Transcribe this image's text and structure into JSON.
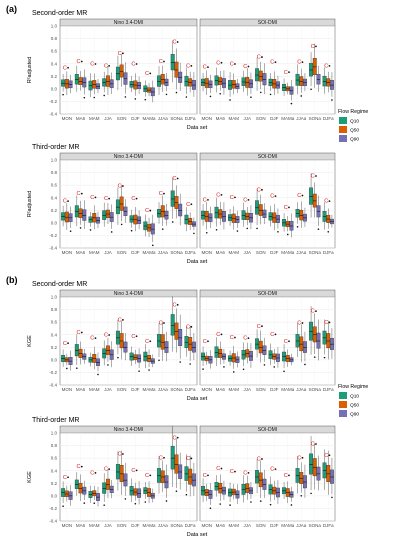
{
  "section_labels": [
    "(a)",
    "(b)"
  ],
  "legend": {
    "title": "Flow Regime",
    "items": [
      {
        "label": "Q10",
        "color": "#1b9e77"
      },
      {
        "label": "Q50",
        "color": "#d95f02"
      },
      {
        "label": "Q90",
        "color": "#7570b3"
      }
    ]
  },
  "significance_marker": "C",
  "chart_data": [
    {
      "type": "box",
      "title": "Second-order MR",
      "ylabel": "R²adjusted",
      "xlabel": "Data set",
      "ylim": [
        -0.4,
        1.0
      ],
      "yticks": [
        -0.4,
        -0.2,
        0.0,
        0.2,
        0.4,
        0.6,
        0.8,
        1.0
      ],
      "categories": [
        "MON",
        "MA6",
        "MAM",
        "JJA",
        "SON",
        "DJF",
        "MAMa",
        "JJAa",
        "SONa",
        "DJFa"
      ],
      "facets": [
        {
          "name": "Nino 3.4-DMI",
          "medians": [
            [
              0.09,
              0.08,
              0.07
            ],
            [
              0.15,
              0.12,
              0.1
            ],
            [
              0.05,
              0.07,
              0.04
            ],
            [
              0.1,
              0.12,
              0.08
            ],
            [
              0.24,
              0.28,
              0.16
            ],
            [
              0.07,
              0.06,
              0.05
            ],
            [
              0.0,
              -0.02,
              -0.05
            ],
            [
              0.12,
              0.15,
              0.1
            ],
            [
              0.42,
              0.3,
              0.18
            ],
            [
              0.12,
              0.1,
              0.06
            ]
          ]
        },
        {
          "name": "SOI-DMI",
          "medians": [
            [
              0.1,
              0.09,
              0.07
            ],
            [
              0.13,
              0.12,
              0.09
            ],
            [
              0.06,
              0.07,
              0.04
            ],
            [
              0.11,
              0.1,
              0.08
            ],
            [
              0.22,
              0.2,
              0.15
            ],
            [
              0.1,
              0.08,
              0.06
            ],
            [
              0.02,
              0.0,
              -0.03
            ],
            [
              0.14,
              0.12,
              0.1
            ],
            [
              0.3,
              0.35,
              0.15
            ],
            [
              0.12,
              0.1,
              0.06
            ]
          ]
        }
      ]
    },
    {
      "type": "box",
      "title": "Third-order MR",
      "ylabel": "R²adjusted",
      "xlabel": "Data set",
      "ylim": [
        -0.4,
        1.0
      ],
      "yticks": [
        -0.4,
        -0.2,
        0.0,
        0.2,
        0.4,
        0.6,
        0.8,
        1.0
      ],
      "categories": [
        "MON",
        "MA6",
        "MAM",
        "JJA",
        "SON",
        "DJF",
        "MAMa",
        "JJAa",
        "SONa",
        "DJFa"
      ],
      "facets": [
        {
          "name": "Nino 3.4-DMI",
          "medians": [
            [
              0.1,
              0.09,
              0.08
            ],
            [
              0.18,
              0.15,
              0.12
            ],
            [
              0.05,
              0.08,
              0.04
            ],
            [
              0.12,
              0.14,
              0.09
            ],
            [
              0.25,
              0.3,
              0.18
            ],
            [
              0.06,
              0.05,
              0.04
            ],
            [
              -0.05,
              -0.08,
              -0.1
            ],
            [
              0.15,
              0.18,
              0.12
            ],
            [
              0.38,
              0.32,
              0.2
            ],
            [
              0.05,
              0.02,
              -0.02
            ]
          ]
        },
        {
          "name": "SOI-DMI",
          "medians": [
            [
              0.12,
              0.1,
              0.08
            ],
            [
              0.16,
              0.14,
              0.1
            ],
            [
              0.08,
              0.07,
              0.05
            ],
            [
              0.12,
              0.1,
              0.08
            ],
            [
              0.24,
              0.2,
              0.14
            ],
            [
              0.1,
              0.08,
              0.06
            ],
            [
              0.0,
              -0.02,
              -0.05
            ],
            [
              0.15,
              0.12,
              0.08
            ],
            [
              0.42,
              0.35,
              0.18
            ],
            [
              0.1,
              0.06,
              0.02
            ]
          ]
        }
      ]
    },
    {
      "type": "box",
      "title": "Second-order MR",
      "ylabel": "KGE",
      "xlabel": "Data set",
      "ylim": [
        -0.4,
        1.0
      ],
      "yticks": [
        -0.4,
        -0.2,
        0.0,
        0.2,
        0.4,
        0.6,
        0.8,
        1.0
      ],
      "categories": [
        "MON",
        "MA6",
        "MAM",
        "JJA",
        "SON",
        "DJF",
        "MAMa",
        "JJAa",
        "SONa",
        "DJFa"
      ],
      "facets": [
        {
          "name": "Nino 3.4-DMI",
          "medians": [
            [
              0.02,
              0.0,
              -0.02
            ],
            [
              0.15,
              0.1,
              0.05
            ],
            [
              0.0,
              0.02,
              -0.04
            ],
            [
              0.1,
              0.15,
              0.08
            ],
            [
              0.35,
              0.3,
              0.2
            ],
            [
              0.05,
              0.04,
              0.02
            ],
            [
              0.05,
              0.02,
              -0.02
            ],
            [
              0.3,
              0.28,
              0.2
            ],
            [
              0.55,
              0.45,
              0.35
            ],
            [
              0.28,
              0.25,
              0.2
            ]
          ]
        },
        {
          "name": "SOI-DMI",
          "medians": [
            [
              0.05,
              0.02,
              0.0
            ],
            [
              0.12,
              0.1,
              0.05
            ],
            [
              0.02,
              0.03,
              0.0
            ],
            [
              0.08,
              0.1,
              0.06
            ],
            [
              0.25,
              0.2,
              0.15
            ],
            [
              0.08,
              0.05,
              0.03
            ],
            [
              0.05,
              0.02,
              0.0
            ],
            [
              0.3,
              0.25,
              0.2
            ],
            [
              0.45,
              0.4,
              0.3
            ],
            [
              0.35,
              0.3,
              0.25
            ]
          ]
        }
      ]
    },
    {
      "type": "box",
      "title": "Third-order MR",
      "ylabel": "KGE",
      "xlabel": "Data set",
      "ylim": [
        -0.4,
        1.0
      ],
      "yticks": [
        -0.4,
        -0.2,
        0.0,
        0.2,
        0.4,
        0.6,
        0.8,
        1.0
      ],
      "categories": [
        "MON",
        "MA6",
        "MAM",
        "JJA",
        "SON",
        "DJF",
        "MAMa",
        "JJAa",
        "SONa",
        "DJFa"
      ],
      "facets": [
        {
          "name": "Nino 3.4-DMI",
          "medians": [
            [
              0.05,
              0.03,
              0.0
            ],
            [
              0.18,
              0.12,
              0.08
            ],
            [
              0.02,
              0.04,
              -0.02
            ],
            [
              0.12,
              0.18,
              0.1
            ],
            [
              0.38,
              0.35,
              0.25
            ],
            [
              0.08,
              0.06,
              0.04
            ],
            [
              0.08,
              0.05,
              0.0
            ],
            [
              0.32,
              0.3,
              0.22
            ],
            [
              0.6,
              0.5,
              0.38
            ],
            [
              0.35,
              0.3,
              0.25
            ]
          ]
        },
        {
          "name": "SOI-DMI",
          "medians": [
            [
              0.08,
              0.05,
              0.02
            ],
            [
              0.15,
              0.12,
              0.08
            ],
            [
              0.05,
              0.06,
              0.02
            ],
            [
              0.1,
              0.12,
              0.08
            ],
            [
              0.3,
              0.25,
              0.18
            ],
            [
              0.1,
              0.08,
              0.05
            ],
            [
              0.08,
              0.05,
              0.02
            ],
            [
              0.32,
              0.28,
              0.22
            ],
            [
              0.5,
              0.45,
              0.35
            ],
            [
              0.4,
              0.35,
              0.3
            ]
          ]
        }
      ]
    }
  ]
}
